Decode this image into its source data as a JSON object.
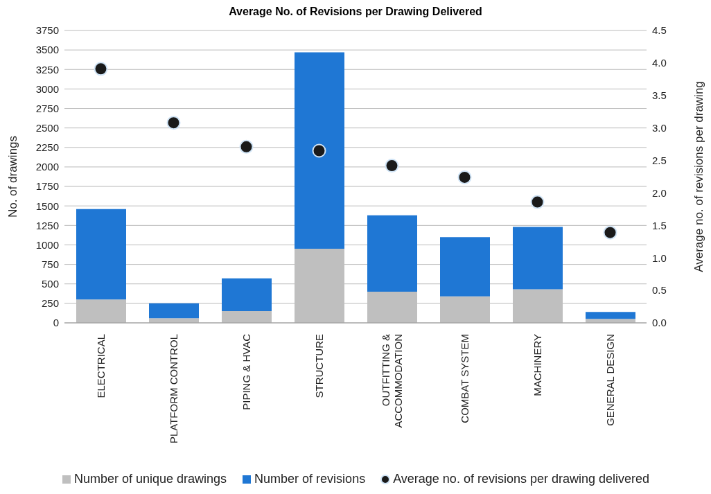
{
  "chart_data": {
    "type": "bar",
    "title": "Average No. of Revisions per Drawing Delivered",
    "ylabel": "No. of drawings",
    "y2label": "Average no. of revisions per drawing",
    "categories": [
      "ELECTRICAL",
      "PLATFORM CONTROL",
      "PIPING & HVAC",
      "STRUCTURE",
      "OUTFITTING & ACCOMMODATION",
      "COMBAT SYSTEM",
      "MACHINERY",
      "GENERAL DESIGN"
    ],
    "stacked": true,
    "series": [
      {
        "name": "Number of unique drawings",
        "color": "#bfbfbf",
        "values": [
          300,
          60,
          150,
          950,
          400,
          340,
          430,
          50
        ]
      },
      {
        "name": "Number of revisions",
        "color": "#1f77d4",
        "values": [
          1160,
          190,
          420,
          2520,
          980,
          760,
          800,
          90
        ]
      },
      {
        "name": "Average no. of revisions per drawing delivered",
        "type": "scatter",
        "axis": "y2",
        "color": "#1a1a1a",
        "values": [
          3.91,
          3.08,
          2.71,
          2.65,
          2.42,
          2.24,
          1.86,
          1.39
        ]
      }
    ],
    "ylim": [
      0,
      3750
    ],
    "yticks": [
      0,
      250,
      500,
      750,
      1000,
      1250,
      1500,
      1750,
      2000,
      2250,
      2500,
      2750,
      3000,
      3250,
      3500,
      3750
    ],
    "y2lim": [
      0,
      4.5
    ],
    "y2ticks": [
      {
        "value": 0,
        "label": "0.0"
      },
      {
        "value": 0.5,
        "label": "0.5"
      },
      {
        "value": 1,
        "label": "1.0"
      },
      {
        "value": 1.5,
        "label": "1.5"
      },
      {
        "value": 2,
        "label": "2.0"
      },
      {
        "value": 2.5,
        "label": "2.5"
      },
      {
        "value": 3,
        "label": "3.0"
      },
      {
        "value": 3.5,
        "label": "3.5"
      },
      {
        "value": 4,
        "label": "4.0"
      },
      {
        "value": 4.5,
        "label": "4.5"
      }
    ],
    "grid": "y",
    "legend": "bottom",
    "marker": "circle"
  }
}
